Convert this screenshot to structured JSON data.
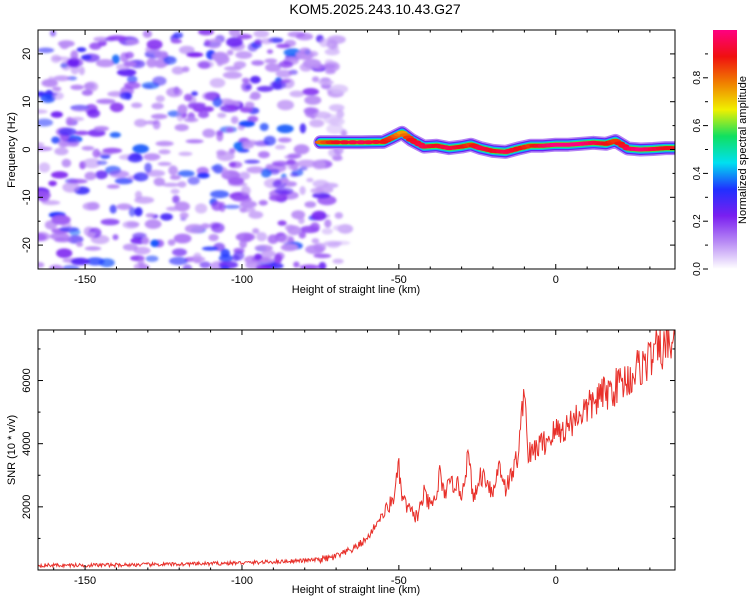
{
  "window": {
    "title": "KOM5.2025.243.10.43.G27"
  },
  "chart_data": [
    {
      "type": "heatmap",
      "title": "KOM5.2025.243.10.43.G27",
      "xlabel": "Height of straight line (km)",
      "ylabel": "Frequency (Hz)",
      "xlim": [
        -165,
        38
      ],
      "ylim": [
        -25,
        25
      ],
      "xticks": [
        -150,
        -100,
        -50,
        0
      ],
      "xtick_labels": [
        "-150",
        "-100",
        "-50",
        "0"
      ],
      "yticks": [
        -20,
        -10,
        0,
        10,
        20
      ],
      "ytick_labels": [
        "-20",
        "-10",
        "0",
        "10",
        "20"
      ],
      "grid": false,
      "noise_region": {
        "x_range": [
          -165,
          -70
        ],
        "y_range": [
          -25,
          25
        ],
        "level_range": [
          0.0,
          0.2
        ]
      },
      "signal_ridge": {
        "x": [
          -75,
          -70,
          -62,
          -55,
          -52,
          -49,
          -46,
          -42,
          -38,
          -34,
          -30,
          -27,
          -24,
          -20,
          -16,
          -12,
          -8,
          -4,
          0,
          4,
          8,
          12,
          16,
          19,
          23,
          27,
          31,
          35,
          38
        ],
        "y": [
          1.5,
          1.5,
          1.5,
          1.6,
          2.5,
          3.5,
          2.0,
          0.6,
          0.8,
          0.3,
          0.6,
          1.0,
          0.3,
          -0.3,
          -0.5,
          0.2,
          0.8,
          0.8,
          1.0,
          1.0,
          1.2,
          1.4,
          1.2,
          1.8,
          0.2,
          0.0,
          0.1,
          0.3,
          0.3
        ],
        "amplitude": [
          0.8,
          0.9,
          0.95,
          0.9,
          0.85,
          0.75,
          0.9,
          0.95,
          0.9,
          0.95,
          0.9,
          0.85,
          0.95,
          0.9,
          0.95,
          0.9,
          0.85,
          0.95,
          1.0,
          1.0,
          1.0,
          0.95,
          0.9,
          0.85,
          0.95,
          1.0,
          0.95,
          0.9,
          0.9
        ]
      },
      "colorbar": {
        "label": "Normalized spectral amplitude",
        "range": [
          0.0,
          1.0
        ],
        "ticks": [
          0.0,
          0.2,
          0.4,
          0.6,
          0.8
        ],
        "tick_labels": [
          "0.0",
          "0.2",
          "0.4",
          "0.6",
          "0.8"
        ],
        "colors": [
          "#ffffff",
          "#b98cf5",
          "#7a1ff0",
          "#2030ff",
          "#00e0f0",
          "#10e060",
          "#f0f000",
          "#f08000",
          "#f01010",
          "#ff0080"
        ]
      }
    },
    {
      "type": "line",
      "xlabel": "Height of straight line (km)",
      "ylabel": "SNR (10 * v/v)",
      "xlim": [
        -165,
        38
      ],
      "ylim": [
        0,
        7600
      ],
      "xticks": [
        -150,
        -100,
        -50,
        0
      ],
      "xtick_labels": [
        "-150",
        "-100",
        "-50",
        "0"
      ],
      "yticks": [
        2000,
        4000,
        6000
      ],
      "ytick_labels": [
        "2000",
        "4000",
        "6000"
      ],
      "grid": false,
      "series": [
        {
          "name": "SNR",
          "color": "#e8302a",
          "x": [
            -165,
            -150,
            -130,
            -110,
            -95,
            -85,
            -78,
            -72,
            -68,
            -64,
            -60,
            -57,
            -54,
            -52,
            -50,
            -49,
            -48,
            -46,
            -44,
            -42,
            -40,
            -38,
            -37,
            -36,
            -34,
            -32,
            -30,
            -28,
            -26,
            -24,
            -22,
            -20,
            -18,
            -16,
            -14,
            -12,
            -11,
            -10,
            -9,
            -8,
            -6,
            -4,
            -2,
            0,
            2,
            4,
            6,
            8,
            10,
            12,
            14,
            16,
            18,
            20,
            22,
            24,
            26,
            28,
            30,
            32,
            34,
            36,
            38
          ],
          "y": [
            150,
            150,
            170,
            200,
            240,
            280,
            310,
            370,
            500,
            700,
            1000,
            1500,
            1900,
            2200,
            3200,
            2300,
            2100,
            1800,
            1700,
            2400,
            2000,
            2300,
            3100,
            2500,
            2600,
            2800,
            2400,
            3600,
            2200,
            3000,
            2900,
            2400,
            3400,
            2600,
            3000,
            3700,
            4600,
            6100,
            3800,
            3600,
            3900,
            4000,
            4200,
            4400,
            4400,
            4600,
            4800,
            5000,
            5100,
            5300,
            5500,
            5600,
            5700,
            5900,
            6000,
            6100,
            6400,
            6500,
            6700,
            6900,
            7000,
            7100,
            7400
          ]
        }
      ]
    }
  ]
}
